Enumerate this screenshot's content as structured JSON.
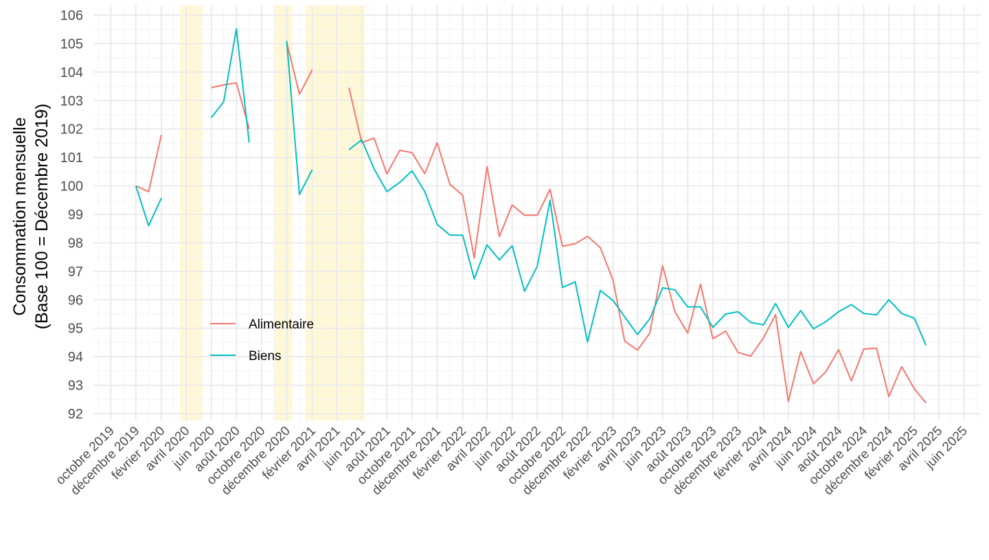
{
  "chart_data": {
    "type": "line",
    "ylabel_line1": "Consommation mensuelle",
    "ylabel_line2": "(Base 100 = Décembre 2019)",
    "ylim": [
      92,
      106
    ],
    "y_ticks": [
      "92",
      "93",
      "94",
      "95",
      "96",
      "97",
      "98",
      "99",
      "100",
      "101",
      "102",
      "103",
      "104",
      "105",
      "106"
    ],
    "x_range": [
      "2019-08-20",
      "2025-07-12"
    ],
    "x_ticks": [
      {
        "date": "2019-10-01",
        "label": "octobre 2019"
      },
      {
        "date": "2019-12-01",
        "label": "décembre 2019"
      },
      {
        "date": "2020-02-01",
        "label": "février 2020"
      },
      {
        "date": "2020-04-01",
        "label": "avril 2020"
      },
      {
        "date": "2020-06-01",
        "label": "juin 2020"
      },
      {
        "date": "2020-08-01",
        "label": "août 2020"
      },
      {
        "date": "2020-10-01",
        "label": "octobre 2020"
      },
      {
        "date": "2020-12-01",
        "label": "décembre 2020"
      },
      {
        "date": "2021-02-01",
        "label": "février 2021"
      },
      {
        "date": "2021-04-01",
        "label": "avril 2021"
      },
      {
        "date": "2021-06-01",
        "label": "juin 2021"
      },
      {
        "date": "2021-08-01",
        "label": "août 2021"
      },
      {
        "date": "2021-10-01",
        "label": "octobre 2021"
      },
      {
        "date": "2021-12-01",
        "label": "décembre 2021"
      },
      {
        "date": "2022-02-01",
        "label": "février 2022"
      },
      {
        "date": "2022-04-01",
        "label": "avril 2022"
      },
      {
        "date": "2022-06-01",
        "label": "juin 2022"
      },
      {
        "date": "2022-08-01",
        "label": "août 2022"
      },
      {
        "date": "2022-10-01",
        "label": "octobre 2022"
      },
      {
        "date": "2022-12-01",
        "label": "décembre 2022"
      },
      {
        "date": "2023-02-01",
        "label": "février 2023"
      },
      {
        "date": "2023-04-01",
        "label": "avril 2023"
      },
      {
        "date": "2023-06-01",
        "label": "juin 2023"
      },
      {
        "date": "2023-08-01",
        "label": "août 2023"
      },
      {
        "date": "2023-10-01",
        "label": "octobre 2023"
      },
      {
        "date": "2023-12-01",
        "label": "décembre 2023"
      },
      {
        "date": "2024-02-01",
        "label": "février 2024"
      },
      {
        "date": "2024-04-01",
        "label": "avril 2024"
      },
      {
        "date": "2024-06-01",
        "label": "juin 2024"
      },
      {
        "date": "2024-08-01",
        "label": "août 2024"
      },
      {
        "date": "2024-10-01",
        "label": "octobre 2024"
      },
      {
        "date": "2024-12-01",
        "label": "décembre 2024"
      },
      {
        "date": "2025-02-01",
        "label": "février 2025"
      },
      {
        "date": "2025-04-01",
        "label": "avril 2025"
      },
      {
        "date": "2025-06-01",
        "label": "juin 2025"
      }
    ],
    "shaded_periods": [
      {
        "start": "2020-03-17",
        "end": "2020-05-11"
      },
      {
        "start": "2020-10-30",
        "end": "2020-12-15"
      },
      {
        "start": "2021-01-15",
        "end": "2021-06-09"
      }
    ],
    "shade_color": "#FFF8D8",
    "legend_position": "inside-left",
    "series": [
      {
        "name": "Alimentaire",
        "color": "#F8766D",
        "x": [
          "2019-12",
          "2020-01",
          "2020-02",
          "2020-03",
          "2020-04",
          "2020-05",
          "2020-06",
          "2020-07",
          "2020-08",
          "2020-09",
          "2020-10",
          "2020-11",
          "2020-12",
          "2021-01",
          "2021-02",
          "2021-03",
          "2021-04",
          "2021-05",
          "2021-06",
          "2021-07",
          "2021-08",
          "2021-09",
          "2021-10",
          "2021-11",
          "2021-12",
          "2022-01",
          "2022-02",
          "2022-03",
          "2022-04",
          "2022-05",
          "2022-06",
          "2022-07",
          "2022-08",
          "2022-09",
          "2022-10",
          "2022-11",
          "2022-12",
          "2023-01",
          "2023-02",
          "2023-03",
          "2023-04",
          "2023-05",
          "2023-06",
          "2023-07",
          "2023-08",
          "2023-09",
          "2023-10",
          "2023-11",
          "2023-12",
          "2024-01",
          "2024-02",
          "2024-03",
          "2024-04",
          "2024-05",
          "2024-06",
          "2024-07",
          "2024-08",
          "2024-09",
          "2024-10",
          "2024-11",
          "2024-12",
          "2025-01",
          "2025-02",
          "2025-03",
          "2025-04"
        ],
        "values": [
          100.0,
          99.8,
          101.8,
          null,
          null,
          null,
          103.45,
          103.55,
          103.62,
          102.0,
          null,
          null,
          105.05,
          103.22,
          104.08,
          null,
          null,
          103.45,
          101.52,
          101.68,
          100.42,
          101.25,
          101.17,
          100.43,
          101.52,
          100.05,
          99.67,
          97.47,
          100.68,
          98.22,
          99.33,
          98.97,
          98.97,
          99.88,
          97.88,
          97.97,
          98.23,
          97.83,
          96.68,
          94.55,
          94.23,
          94.83,
          97.2,
          95.58,
          94.83,
          96.55,
          94.63,
          94.9,
          94.15,
          94.02,
          94.67,
          95.48,
          92.43,
          94.18,
          93.05,
          93.47,
          94.25,
          93.15,
          94.27,
          94.3,
          92.6,
          93.65,
          92.87,
          92.38,
          null
        ]
      },
      {
        "name": "Biens",
        "color": "#00BFC4",
        "x": [
          "2019-12",
          "2020-01",
          "2020-02",
          "2020-03",
          "2020-04",
          "2020-05",
          "2020-06",
          "2020-07",
          "2020-08",
          "2020-09",
          "2020-10",
          "2020-11",
          "2020-12",
          "2021-01",
          "2021-02",
          "2021-03",
          "2021-04",
          "2021-05",
          "2021-06",
          "2021-07",
          "2021-08",
          "2021-09",
          "2021-10",
          "2021-11",
          "2021-12",
          "2022-01",
          "2022-02",
          "2022-03",
          "2022-04",
          "2022-05",
          "2022-06",
          "2022-07",
          "2022-08",
          "2022-09",
          "2022-10",
          "2022-11",
          "2022-12",
          "2023-01",
          "2023-02",
          "2023-03",
          "2023-04",
          "2023-05",
          "2023-06",
          "2023-07",
          "2023-08",
          "2023-09",
          "2023-10",
          "2023-11",
          "2023-12",
          "2024-01",
          "2024-02",
          "2024-03",
          "2024-04",
          "2024-05",
          "2024-06",
          "2024-07",
          "2024-08",
          "2024-09",
          "2024-10",
          "2024-11",
          "2024-12",
          "2025-01",
          "2025-02",
          "2025-03",
          "2025-04"
        ],
        "values": [
          100.0,
          98.6,
          99.58,
          null,
          null,
          null,
          102.4,
          102.95,
          105.52,
          101.52,
          null,
          null,
          105.1,
          99.7,
          100.57,
          null,
          null,
          101.27,
          101.62,
          100.6,
          99.8,
          100.12,
          100.53,
          99.8,
          98.65,
          98.27,
          98.27,
          96.73,
          97.93,
          97.4,
          97.9,
          96.3,
          97.18,
          99.5,
          96.43,
          96.63,
          94.52,
          96.33,
          95.97,
          95.4,
          94.78,
          95.33,
          96.42,
          96.35,
          95.75,
          95.75,
          95.03,
          95.5,
          95.58,
          95.2,
          95.12,
          95.87,
          95.03,
          95.62,
          94.98,
          95.23,
          95.58,
          95.83,
          95.52,
          95.47,
          96.0,
          95.52,
          95.35,
          94.4,
          null
        ]
      }
    ]
  }
}
